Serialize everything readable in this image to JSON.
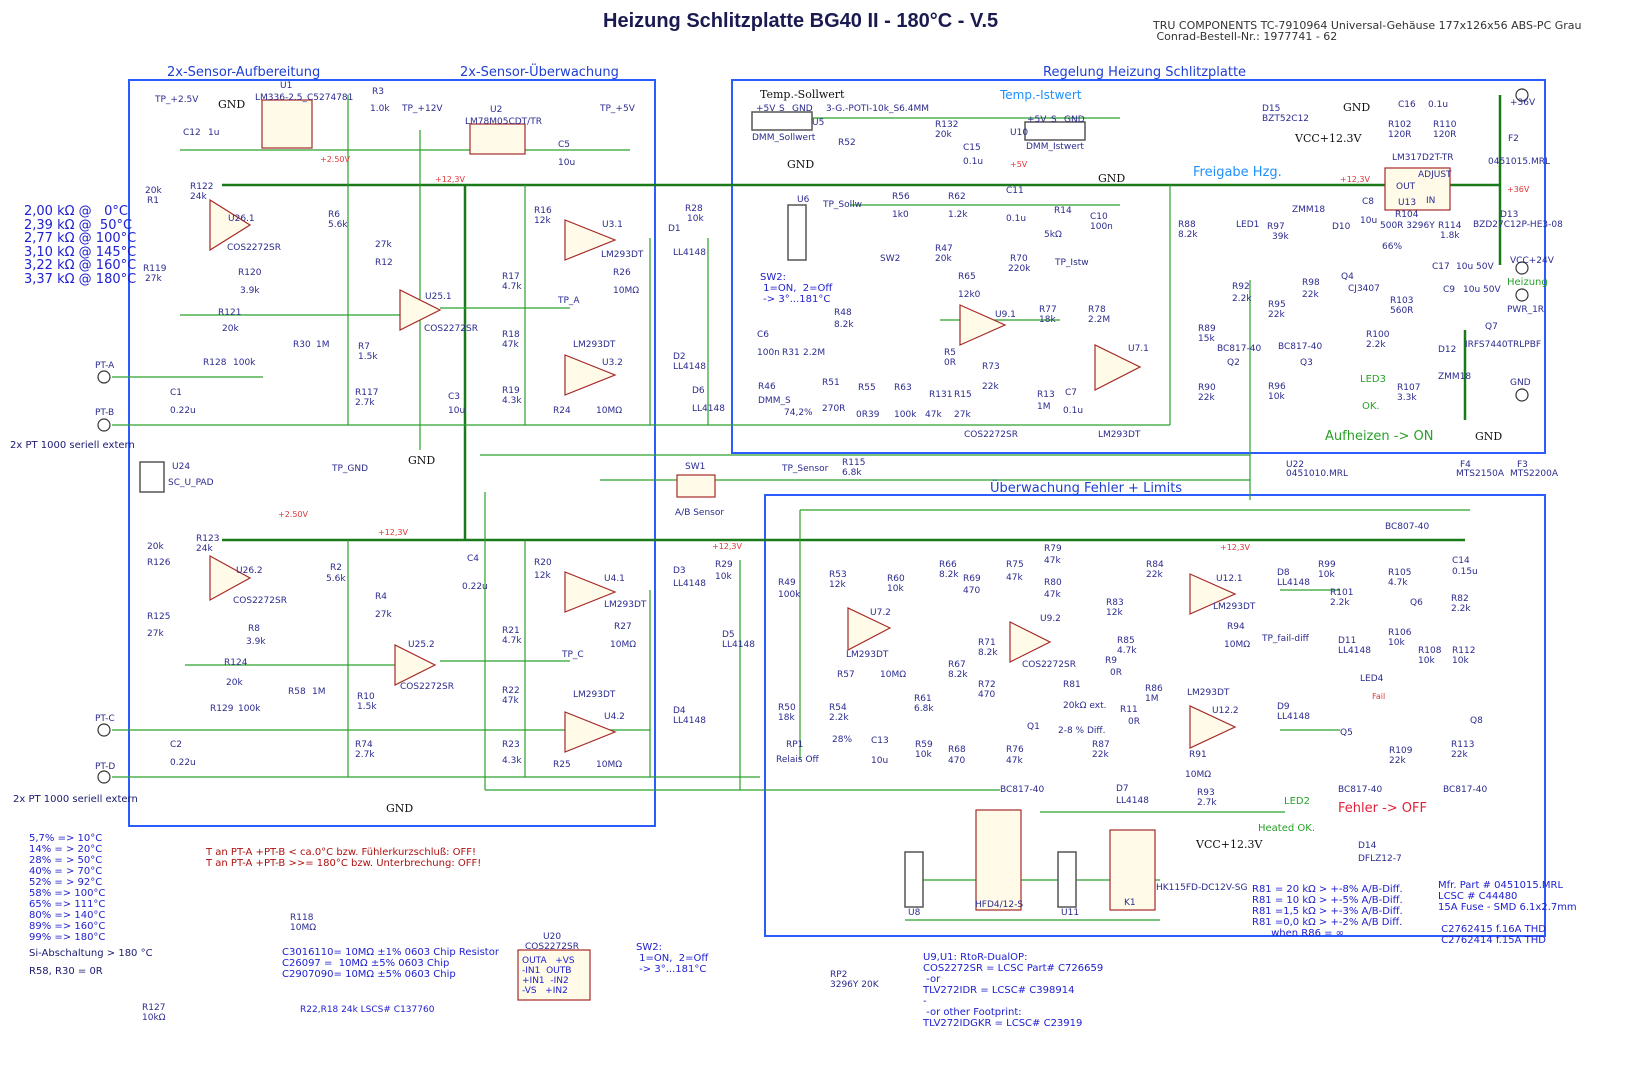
{
  "title": "Heizung Schlitzplatte BG40 II - 180°C - V.5",
  "header_note": "TRU COMPONENTS TC-7910964 Universal-Gehäuse 177x126x56 ABS-PC Grau\n Conrad-Bestell-Nr.: 1977741 - 62",
  "sections": {
    "sensor_prep": "2x-Sensor-Aufbereitung",
    "sensor_monitor": "2x-Sensor-Überwachung",
    "heating_control": "Regelung Heizung Schlitzplatte",
    "fault_monitor": "Überwachung Fehler + Limits"
  },
  "status": {
    "release": "Freigabe Hzg.",
    "heating_on": "Aufheizen -> ON",
    "fault_off": "Fehler -> OFF"
  },
  "notes": {
    "pt_table": "2,00 kΩ @   0°C\n2,39 kΩ @  50°C\n2,77 kΩ @ 100°C\n3,10 kΩ @ 145°C\n3,22 kΩ @ 160°C\n3,37 kΩ @ 180°C",
    "percent_table": "5,7% => 10°C\n14% = > 20°C\n28% = > 50°C\n40% = > 70°C\n52% = > 92°C\n58% => 100°C\n65% => 111°C\n80% => 140°C\n89% => 160°C\n99% => 180°C",
    "si_cutoff": "Si-Abschaltung > 180 °C",
    "r58_r30": "R58, R30 = 0R",
    "warnings": "T an PT-A +PT-B < ca.0°C bzw. Fühlerkurzschluß: OFF!\nT an PT-A +PT-B >>= 180°C bzw. Unterbrechung: OFF!",
    "chip_resistors": "C3016110= 10MΩ ±1% 0603 Chip Resistor\nC26097 =  10MΩ ±5% 0603 Chip\nC2907090= 10MΩ ±5% 0603 Chip",
    "r22_r18": "R22,R18 24k LSCS# C137760",
    "sw2_bottom": "SW2:\n 1=ON,  2=Off\n -> 3°...181°C",
    "opamp_parts": "U9,U1: RtoR-DualOP:\nCOS2272SR = LCSC Part# C726659\n -or\nTLV272IDR = LCSC# C398914\n-\n -or other Footprint:\nTLV272IDGKR = LCSC# C23919",
    "r81_table": "R81 = 20 kΩ > +-8% A/B-Diff.\nR81 = 10 kΩ > +-5% A/B-Diff.\nR81 =1,5 kΩ > +-3% A/B-Diff.\nR81 =0,0 kΩ > +-2% A/B Diff.\n      when R86 = ∞",
    "fuse_info": "Mfr. Part # 0451015.MRL\nLCSC # C44480\n15A Fuse - SMD 6.1x2.7mm\n\n C2762415 f.16A THD\n C2762414 f.15A THD",
    "sw2_top": "SW2:\n 1=ON,  2=Off\n -> 3°...181°C",
    "pt_ext_1": "2x PT 1000 seriell extern",
    "pt_ext_2": "2x PT 1000 seriell extern"
  },
  "u20_pins": "OUTA   +VS\n-IN1  OUTB\n+IN1  -IN2\n-VS   +IN2",
  "labels": {
    "left": [
      "TP_+2.5V",
      "GND",
      "U1",
      "LM336-2.5_C5274781",
      "C12",
      "1u",
      "R3",
      "1.0k",
      "TP_+12V",
      "U2",
      "LM78M05CDT/TR",
      "TP_+5V",
      "C5",
      "10u",
      "+2.50V",
      "+12,3V",
      "R122",
      "24k",
      "20k",
      "R1",
      "U26.1",
      "COS2272SR",
      "R6",
      "5.6k",
      "R12",
      "27k",
      "R119",
      "27k",
      "R120",
      "3.9k",
      "R121",
      "20k",
      "U25.1",
      "COS2272SR",
      "R128",
      "100k",
      "R30",
      "1M",
      "R7",
      "1.5k",
      "R117",
      "2.7k",
      "TP_GND",
      "GND",
      "C1",
      "0.22u",
      "C3",
      "10u",
      "R16",
      "12k",
      "U3.1",
      "LM293DT",
      "R26",
      "10MΩ",
      "R28",
      "10k",
      "D1",
      "LL4148",
      "R17",
      "4.7k",
      "TP_A",
      "R18",
      "47k",
      "R19",
      "4.3k",
      "U3.2",
      "LM293DT",
      "R24",
      "10MΩ",
      "D2",
      "LL4148",
      "D6",
      "LL4148",
      "PT-A",
      "PT-B",
      "U24",
      "SC_U_PAD"
    ],
    "left_lower": [
      "+2.50V",
      "R123",
      "24k",
      "20k",
      "R126",
      "U26.2",
      "COS2272SR",
      "R125",
      "27k",
      "R8",
      "3.9k",
      "R124",
      "20k",
      "R129",
      "100k",
      "R58",
      "1M",
      "+12,3V",
      "R2",
      "5.6k",
      "R4",
      "27k",
      "U25.2",
      "COS2272SR",
      "R10",
      "1.5k",
      "R74",
      "2.7k",
      "GND",
      "C2",
      "0.22u",
      "C4",
      "0.22u",
      "R20",
      "12k",
      "U4.1",
      "LM293DT",
      "R27",
      "10MΩ",
      "+12,3V",
      "R29",
      "10k",
      "D3",
      "LL4148",
      "R21",
      "4.7k",
      "TP_C",
      "D5",
      "LL4148",
      "R22",
      "47k",
      "U4.2",
      "LM293DT",
      "D4",
      "LL4148",
      "R23",
      "4.3k",
      "R25",
      "10MΩ",
      "PT-C",
      "PT-D",
      "SW1",
      "A/B Sensor",
      "TP_Sensor",
      "R115",
      "6.8k"
    ],
    "top_right": [
      "Temp.-Sollwert",
      "+5V",
      "S",
      "GND",
      "U5",
      "DMM_Sollwert",
      "GND",
      "3-G.-POTI-10k_S6.4MM",
      "R52",
      "R132",
      "20k",
      "C15",
      "0.1u",
      "+5V",
      "Temp.-Istwert",
      "U10",
      "+5V",
      "S",
      "GND",
      "DMM_Istwert",
      "GND",
      "U6",
      "TP_Sollw",
      "R56",
      "1k0",
      "R62",
      "1.2k",
      "C11",
      "0.1u",
      "R14",
      "5kΩ",
      "C10",
      "100n",
      "R47",
      "20k",
      "SW2",
      "R70",
      "220k",
      "TP_Istw",
      "R65",
      "12k0",
      "R48",
      "8.2k",
      "U9.1",
      "R77",
      "18k",
      "R78",
      "2.2M",
      "C6",
      "100n",
      "R31",
      "2.2M",
      "R5",
      "0R",
      "U7.1",
      "R46",
      "DMM_S",
      "74,2%",
      "R51",
      "270R",
      "R55",
      "0R39",
      "R63",
      "100k",
      "R131",
      "47k",
      "R15",
      "27k",
      "R73",
      "22k",
      "R13",
      "1M",
      "C7",
      "0.1u",
      "COS2272SR",
      "LM293DT"
    ],
    "power": [
      "D15",
      "BZT52C12",
      "VCC+12.3V",
      "+12,3V",
      "GND",
      "C16",
      "0.1u",
      "R102",
      "120R",
      "R110",
      "120R",
      "LM317D2T-TR",
      "ADJUST",
      "OUT",
      "IN",
      "U13",
      "+36V",
      "F2",
      "0451015.MRL",
      "+36V",
      "D13",
      "BZD27C12P-HE3-08",
      "LED1",
      "R88",
      "8.2k",
      "R97",
      "39k",
      "ZMM18",
      "D10",
      "C8",
      "10u",
      "R104",
      "500R 3296Y",
      "66%",
      "R114",
      "1.8k",
      "C17",
      "10u 50V",
      "C9",
      "10u 50V",
      "VCC+24V",
      "Heizung",
      "PWR_1R",
      "R92",
      "2.2k",
      "R95",
      "22k",
      "Q4",
      "CJ3407",
      "R98",
      "22k",
      "R103",
      "560R",
      "Q7",
      "IRFS7440TRLPBF",
      "R89",
      "15k",
      "BC817-40",
      "Q2",
      "BC817-40",
      "Q3",
      "R100",
      "2.2k",
      "D12",
      "ZMM18",
      "R90",
      "22k",
      "R96",
      "10k",
      "LED3",
      "OK.",
      "R107",
      "3.3k",
      "GND",
      "GND",
      "U22",
      "0451010.MRL",
      "F4",
      "MTS2150A",
      "F3",
      "MTS2200A"
    ],
    "fault": [
      "BC807-40",
      "C14",
      "0.15u",
      "R49",
      "100k",
      "R53",
      "12k",
      "R60",
      "10k",
      "R66",
      "8.2k",
      "R69",
      "470",
      "R75",
      "47k",
      "R79",
      "47k",
      "R80",
      "47k",
      "R84",
      "22k",
      "+12,3V",
      "R99",
      "10k",
      "R105",
      "4.7k",
      "R82",
      "2.2k",
      "U7.2",
      "LM293DT",
      "R83",
      "12k",
      "U12.1",
      "LM293DT",
      "D8",
      "LL4148",
      "R101",
      "2.2k",
      "Q6",
      "U9.2",
      "COS2272SR",
      "R71",
      "8.2k",
      "R85",
      "4.7k",
      "R94",
      "10MΩ",
      "TP_fail-diff",
      "D11",
      "LL4148",
      "R106",
      "10k",
      "R108",
      "10k",
      "R112",
      "10k",
      "R57",
      "10MΩ",
      "R9",
      "0R",
      "R67",
      "8.2k",
      "R72",
      "470",
      "R81",
      "20kΩ ext.",
      "R86",
      "1M",
      "LED4",
      "Fail",
      "R50",
      "18k",
      "R54",
      "2.2k",
      "R61",
      "6.8k",
      "R11",
      "0R",
      "U12.2",
      "LM293DT",
      "D9",
      "LL4148",
      "Q1",
      "2-8 % Diff.",
      "RP1",
      "Relais Off",
      "28%",
      "C13",
      "10u",
      "R59",
      "10k",
      "R68",
      "470",
      "R76",
      "47k",
      "R87",
      "22k",
      "Q5",
      "Q8",
      "R109",
      "22k",
      "R113",
      "22k",
      "R91",
      "10MΩ",
      "BC817-40",
      "D7",
      "LL4148",
      "R93",
      "2.7k",
      "LED2",
      "Heated OK.",
      "BC817-40",
      "BC817-40",
      "VCC+12.3V",
      "D14",
      "DFLZ12-7",
      "U8",
      "HFD4/12-S",
      "U11",
      "K1",
      "HK115FD-DC12V-SG"
    ],
    "bottom": [
      "R118",
      "10MΩ",
      "U20",
      "COS2272SR",
      "R127",
      "10kΩ",
      "RP2",
      "3296Y 20K"
    ]
  },
  "colors": {
    "wire": "#2ca02c",
    "bus": "#1a7a1a",
    "symbol": "#a52a2a",
    "frame": "#2a5cff",
    "component_text": "#2b2b8f"
  }
}
